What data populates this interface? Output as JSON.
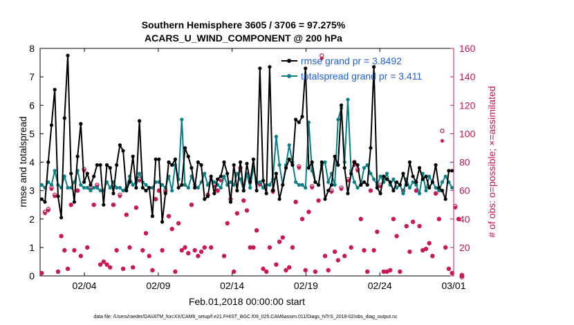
{
  "chart_data": {
    "type": "line",
    "title": "Southern Hemisphere 3605 / 3706 = 97.275%",
    "subtitle": "ACARS_U_WIND_COMPONENT @ 200 hPa",
    "xlabel": "Feb.01,2018 00:00:00 start",
    "ylabel": "rmse and totalspread",
    "ylabel_right": "# of obs: o=possible; ×=assimilated",
    "x_tick_labels": [
      "02/04",
      "02/09",
      "02/14",
      "02/19",
      "02/24",
      "03/01"
    ],
    "x_tick_days": [
      3,
      8,
      13,
      18,
      23,
      28
    ],
    "xlim": [
      0,
      28
    ],
    "ylim": [
      0,
      8
    ],
    "y_ticks": [
      0,
      1,
      2,
      3,
      4,
      5,
      6,
      7,
      8
    ],
    "ylim_right": [
      0,
      160
    ],
    "y_ticks_right": [
      0,
      20,
      40,
      60,
      80,
      100,
      120,
      140,
      160
    ],
    "legend_placement": "top-right",
    "footer": "data file: /Users/raeder/DAI/ATM_forcXX/CAM6_setup/f.e21.FHIST_BGC.f09_025.CAM6assim.011/Diags_NTrS_2018-02/obs_diag_output.nc",
    "series": [
      {
        "name": "rmse grand pr = 3.8492",
        "color": "#000000",
        "values": [
          2.7,
          2.6,
          4.0,
          5.3,
          6.55,
          2.8,
          2.05,
          5.55,
          7.75,
          3.6,
          2.6,
          4.2,
          5.35,
          3.3,
          3.6,
          3.2,
          3.5,
          3.9,
          3.9,
          2.5,
          3.9,
          3.8,
          2.9,
          3.9,
          4.6,
          4.4,
          3.0,
          3.3,
          4.2,
          3.1,
          5.45,
          3.1,
          3.0,
          3.1,
          2.1,
          4.1,
          4.1,
          1.9,
          2.9,
          4.0,
          3.9,
          4.1,
          3.1,
          3.2,
          4.5,
          4.2,
          3.8,
          3.1,
          4.0,
          3.9,
          2.7,
          2.8,
          3.5,
          2.9,
          3.4,
          3.5,
          4.0,
          3.6,
          2.6,
          3.9,
          3.0,
          4.0,
          3.0,
          3.95,
          3.3,
          4.1,
          3.0,
          7.3,
          3.35,
          2.9,
          7.35,
          3.0,
          3.6,
          2.7,
          3.2,
          3.8,
          4.1,
          3.9,
          5.5,
          5.4,
          5.6,
          7.3,
          3.8,
          4.0,
          3.3,
          3.2,
          4.0,
          2.7,
          3.0,
          3.2,
          4.2,
          3.9,
          6.0,
          3.8,
          2.9,
          3.6,
          4.0,
          3.9,
          3.2,
          3.3,
          3.2,
          4.5,
          7.35,
          3.1,
          2.9,
          3.5,
          3.4,
          3.3,
          3.0,
          3.3,
          3.2,
          3.6,
          3.2,
          4.0,
          3.5,
          3.3,
          3.8,
          3.4,
          3.5,
          3.1,
          3.3,
          3.9,
          3.1,
          3.0,
          2.7,
          3.7,
          3.7
        ]
      },
      {
        "name": "totalspread grand pr = 3.411",
        "color": "#0a7f85",
        "values": [
          3.2,
          3.1,
          3.3,
          3.2,
          3.7,
          3.2,
          3.1,
          3.5,
          3.1,
          3.1,
          3.3,
          3.7,
          3.2,
          3.1,
          3.1,
          3.0,
          3.1,
          3.1,
          3.0,
          3.0,
          3.3,
          3.1,
          3.3,
          3.1,
          3.1,
          3.0,
          3.1,
          3.5,
          3.2,
          3.3,
          3.6,
          3.3,
          3.2,
          3.1,
          3.1,
          3.3,
          3.3,
          3.2,
          3.1,
          3.5,
          3.0,
          3.9,
          3.4,
          5.5,
          3.2,
          3.1,
          3.5,
          3.2,
          3.1,
          3.3,
          3.6,
          3.2,
          3.4,
          3.3,
          3.2,
          3.1,
          3.5,
          3.2,
          3.3,
          3.2,
          3.6,
          3.4,
          3.0,
          3.6,
          3.1,
          3.8,
          3.3,
          3.3,
          3.1,
          3.2,
          3.2,
          3.4,
          4.9,
          3.9,
          3.2,
          3.9,
          4.6,
          4.0,
          3.3,
          3.2,
          3.2,
          3.1,
          5.4,
          3.7,
          3.3,
          3.2,
          3.9,
          4.0,
          3.3,
          3.6,
          3.2,
          5.5,
          5.9,
          4.0,
          6.2,
          3.7,
          3.3,
          3.1,
          3.2,
          3.8,
          3.9,
          3.6,
          3.4,
          3.2,
          3.5,
          3.3,
          3.6,
          3.2,
          3.4,
          3.1,
          3.2,
          2.9,
          3.4,
          3.1,
          3.3,
          3.2,
          2.9,
          3.6,
          3.0,
          3.5,
          3.3,
          3.1,
          3.0,
          3.3,
          3.5,
          3.3,
          3.1
        ]
      },
      {
        "name": "obs possible",
        "color": "#c8134f",
        "axis": "right",
        "values": [
          2,
          45,
          47,
          62,
          57,
          3,
          28,
          18,
          5,
          50,
          18,
          60,
          14,
          75,
          20,
          62,
          50,
          64,
          8,
          10,
          8,
          6,
          50,
          18,
          57,
          5,
          43,
          20,
          6,
          48,
          68,
          18,
          30,
          14,
          4,
          54,
          60,
          18,
          60,
          42,
          33,
          3,
          37,
          18,
          20,
          16,
          50,
          18,
          14,
          17,
          20,
          57,
          20,
          64,
          60,
          68,
          14,
          37,
          54,
          3,
          44,
          76,
          53,
          46,
          20,
          20,
          32,
          65,
          5,
          3,
          20,
          60,
          8,
          24,
          27,
          4,
          6,
          20,
          52,
          77,
          40,
          4,
          45,
          63,
          3,
          53,
          155,
          14,
          4,
          60,
          17,
          11,
          62,
          14,
          68,
          20,
          80,
          75,
          40,
          18,
          3,
          60,
          18,
          31,
          64,
          3,
          3,
          4,
          40,
          28,
          3,
          60,
          35,
          17,
          38,
          60,
          35,
          18,
          19,
          23,
          14,
          58,
          40,
          102,
          20,
          5,
          2,
          49,
          40,
          0
        ]
      },
      {
        "name": "obs assimilated",
        "color": "#c8134f",
        "axis": "right",
        "values": [
          2,
          44,
          46,
          61,
          56,
          3,
          28,
          18,
          5,
          50,
          18,
          60,
          14,
          74,
          20,
          61,
          50,
          63,
          8,
          10,
          8,
          6,
          50,
          18,
          56,
          5,
          43,
          20,
          6,
          48,
          67,
          18,
          30,
          14,
          4,
          54,
          60,
          18,
          59,
          42,
          33,
          3,
          37,
          18,
          20,
          16,
          50,
          18,
          14,
          17,
          20,
          57,
          20,
          63,
          60,
          67,
          14,
          37,
          54,
          3,
          44,
          74,
          53,
          46,
          20,
          20,
          32,
          64,
          5,
          3,
          20,
          59,
          8,
          24,
          27,
          4,
          6,
          20,
          52,
          76,
          40,
          4,
          45,
          62,
          3,
          53,
          153,
          14,
          4,
          59,
          17,
          11,
          61,
          14,
          67,
          20,
          78,
          74,
          40,
          18,
          3,
          60,
          18,
          31,
          63,
          3,
          3,
          4,
          40,
          28,
          3,
          60,
          35,
          17,
          38,
          60,
          35,
          18,
          19,
          23,
          14,
          58,
          40,
          95,
          20,
          5,
          2,
          48,
          40,
          0
        ]
      }
    ]
  }
}
